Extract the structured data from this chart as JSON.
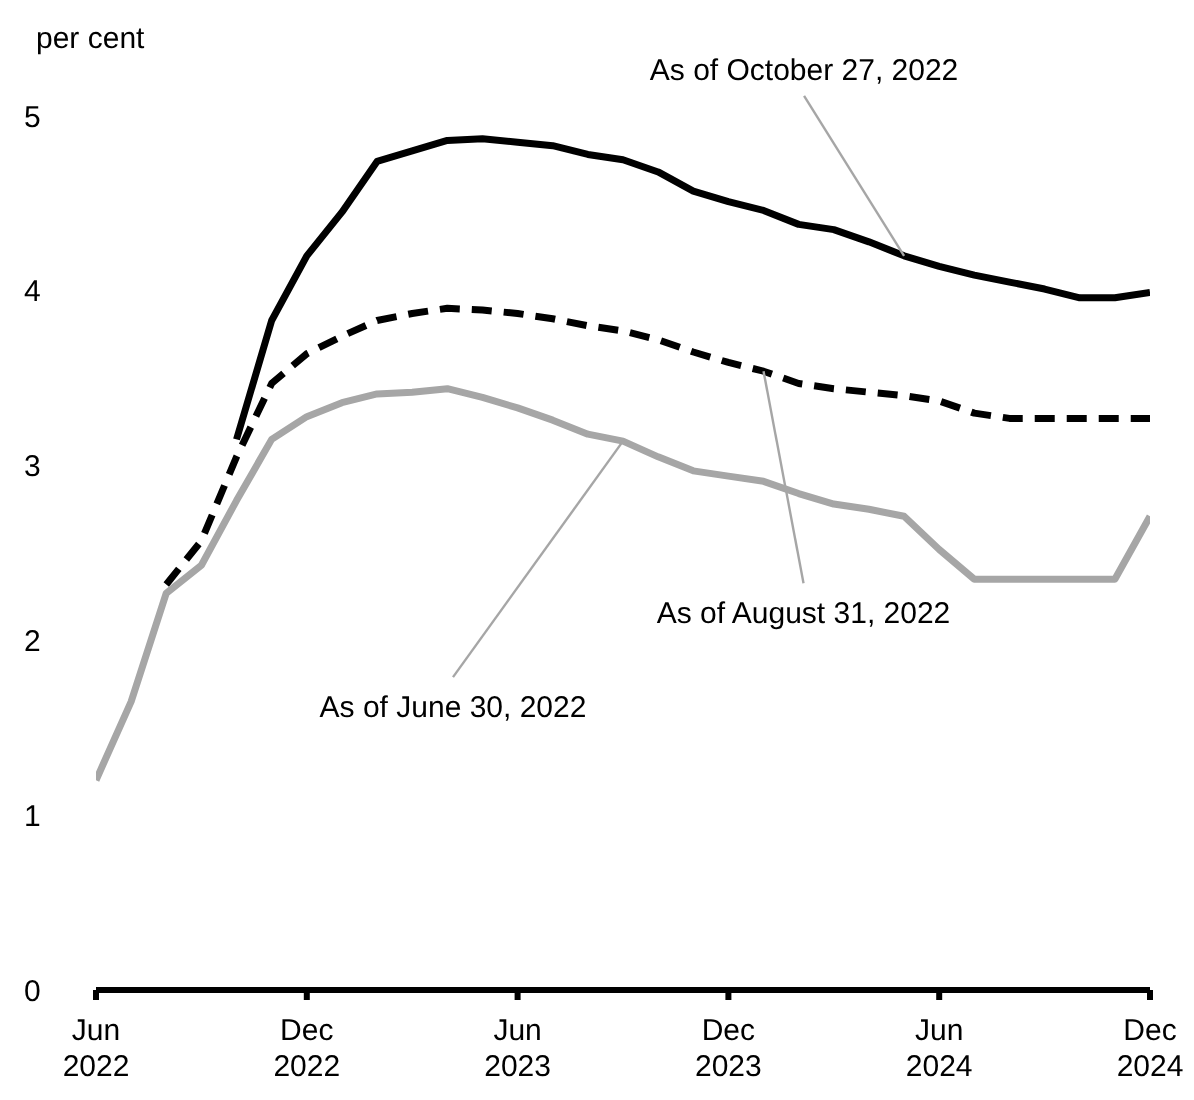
{
  "chart_data": {
    "type": "line",
    "ylabel": "per cent",
    "xlim": [
      "2022-06",
      "2024-12"
    ],
    "xticks": [
      {
        "value": "2022-06",
        "label": "Jun 2022"
      },
      {
        "value": "2022-12",
        "label": "Dec 2022"
      },
      {
        "value": "2023-06",
        "label": "Jun 2023"
      },
      {
        "value": "2023-12",
        "label": "Dec 2023"
      },
      {
        "value": "2024-06",
        "label": "Jun 2024"
      },
      {
        "value": "2024-12",
        "label": "Dec 2024"
      }
    ],
    "ylim": [
      0,
      5
    ],
    "yticks": [
      0,
      1,
      2,
      3,
      4,
      5
    ],
    "marker": "none",
    "x": [
      "2022-06",
      "2022-07",
      "2022-08",
      "2022-09",
      "2022-10",
      "2022-11",
      "2022-12",
      "2023-01",
      "2023-02",
      "2023-03",
      "2023-04",
      "2023-05",
      "2023-06",
      "2023-07",
      "2023-08",
      "2023-09",
      "2023-10",
      "2023-11",
      "2023-12",
      "2024-01",
      "2024-02",
      "2024-03",
      "2024-04",
      "2024-05",
      "2024-06",
      "2024-07",
      "2024-08",
      "2024-09",
      "2024-10",
      "2024-11",
      "2024-12"
    ],
    "series": [
      {
        "color": "#000000",
        "line_style": "solid",
        "values": [
          null,
          null,
          null,
          null,
          3.15,
          3.83,
          4.2,
          4.45,
          4.74,
          4.8,
          4.86,
          4.87,
          4.85,
          4.83,
          4.78,
          4.75,
          4.68,
          4.57,
          4.51,
          4.46,
          4.38,
          4.35,
          4.28,
          4.2,
          4.14,
          4.09,
          4.05,
          4.01,
          3.96,
          3.96,
          3.99
        ]
      },
      {
        "color": "#000000",
        "line_style": "dashed",
        "values": [
          null,
          null,
          2.32,
          2.57,
          3.05,
          3.47,
          3.64,
          3.74,
          3.83,
          3.87,
          3.9,
          3.89,
          3.87,
          3.84,
          3.8,
          3.77,
          3.72,
          3.65,
          3.59,
          3.54,
          3.47,
          3.44,
          3.42,
          3.4,
          3.37,
          3.3,
          3.27,
          3.27,
          3.27,
          3.27,
          3.27
        ]
      },
      {
        "color": "#a6a6a6",
        "line_style": "solid",
        "values": [
          1.2,
          1.65,
          2.27,
          2.43,
          2.8,
          3.15,
          3.28,
          3.36,
          3.41,
          3.42,
          3.44,
          3.39,
          3.33,
          3.26,
          3.18,
          3.14,
          3.05,
          2.97,
          2.94,
          2.91,
          2.84,
          2.78,
          2.75,
          2.71,
          2.52,
          2.35,
          2.35,
          2.35,
          2.35,
          2.35,
          2.71
        ]
      }
    ],
    "annotations": [
      {
        "text": "As of October 27, 2022",
        "x": "2024-05",
        "y": 4.2
      },
      {
        "text": "As of August 31, 2022",
        "x": "2024-01",
        "y": 3.54
      },
      {
        "text": "As of June 30, 2022",
        "x": "2023-09",
        "y": 3.14
      }
    ]
  }
}
